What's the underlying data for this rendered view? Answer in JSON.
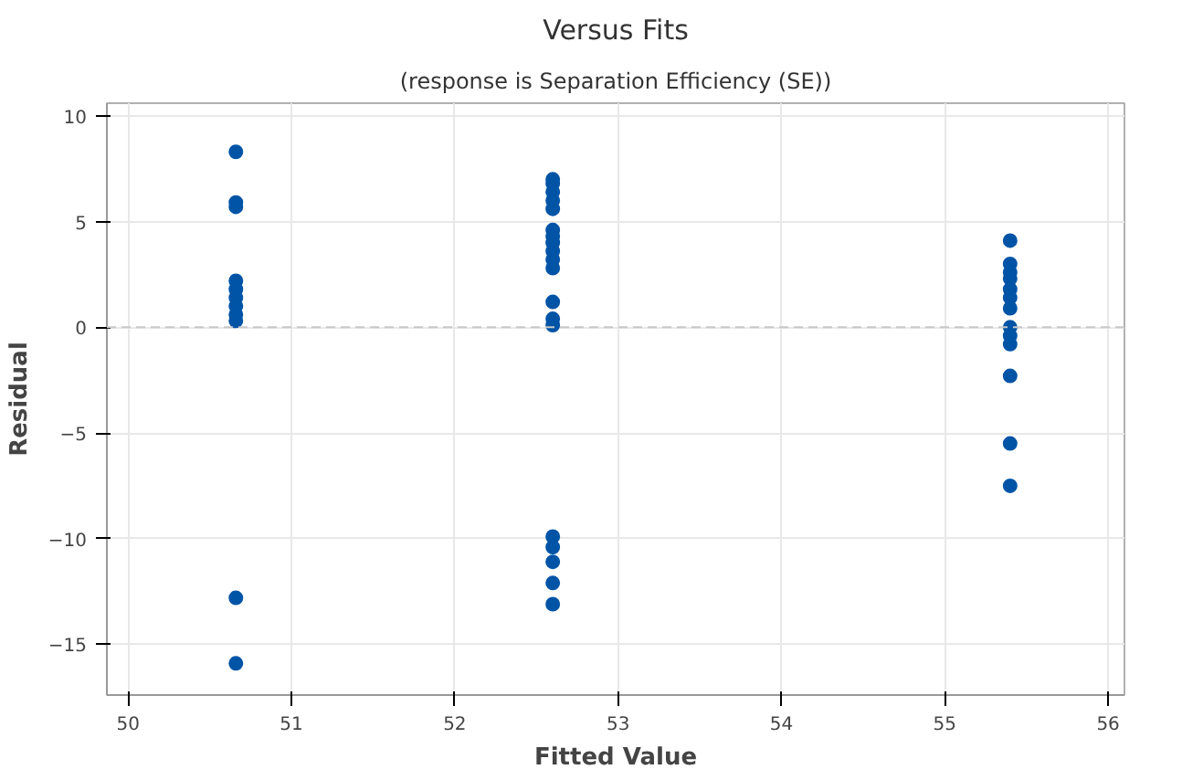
{
  "chart_data": {
    "type": "scatter",
    "title": "Versus Fits",
    "subtitle": "(response is Separation Efficiency (SE))",
    "xlabel": "Fitted Value",
    "ylabel": "Residual",
    "xlim": [
      49.87,
      56.1
    ],
    "xticks": [
      50,
      51,
      52,
      53,
      54,
      55,
      56
    ],
    "ylim": [
      -17.4,
      10.6
    ],
    "yticks": [
      -15,
      -10,
      -5,
      0,
      5,
      10
    ],
    "grid": true,
    "marker": "circle",
    "series": [
      {
        "color": "#0054a6",
        "x": [
          50.66,
          50.66,
          50.66,
          50.66,
          50.66,
          50.66,
          50.66,
          50.66,
          50.66,
          50.66,
          50.66,
          52.6,
          52.6,
          52.6,
          52.6,
          52.6,
          52.6,
          52.6,
          52.6,
          52.6,
          52.6,
          52.6,
          52.6,
          52.6,
          52.6,
          52.6,
          52.6,
          52.6,
          52.6,
          52.6,
          55.4,
          55.4,
          55.4,
          55.4,
          55.4,
          55.4,
          55.4,
          55.4,
          55.4,
          55.4,
          55.4,
          55.4,
          55.4
        ],
        "values": [
          8.3,
          5.9,
          5.7,
          2.2,
          1.8,
          1.4,
          1.0,
          0.6,
          0.3,
          -12.8,
          -15.9,
          7.0,
          6.8,
          6.4,
          6.0,
          5.6,
          4.6,
          4.3,
          4.0,
          3.6,
          3.2,
          2.8,
          1.2,
          0.4,
          0.1,
          -9.9,
          -10.4,
          -11.1,
          -12.1,
          -13.1,
          4.1,
          3.0,
          2.6,
          2.3,
          1.8,
          1.4,
          0.9,
          0.0,
          -0.4,
          -0.8,
          -2.3,
          -5.5,
          -7.5
        ]
      }
    ],
    "ref_lines": [
      {
        "axis": "y",
        "value": 0,
        "color": "#c8c8c8",
        "line_style": "dashed"
      }
    ]
  }
}
